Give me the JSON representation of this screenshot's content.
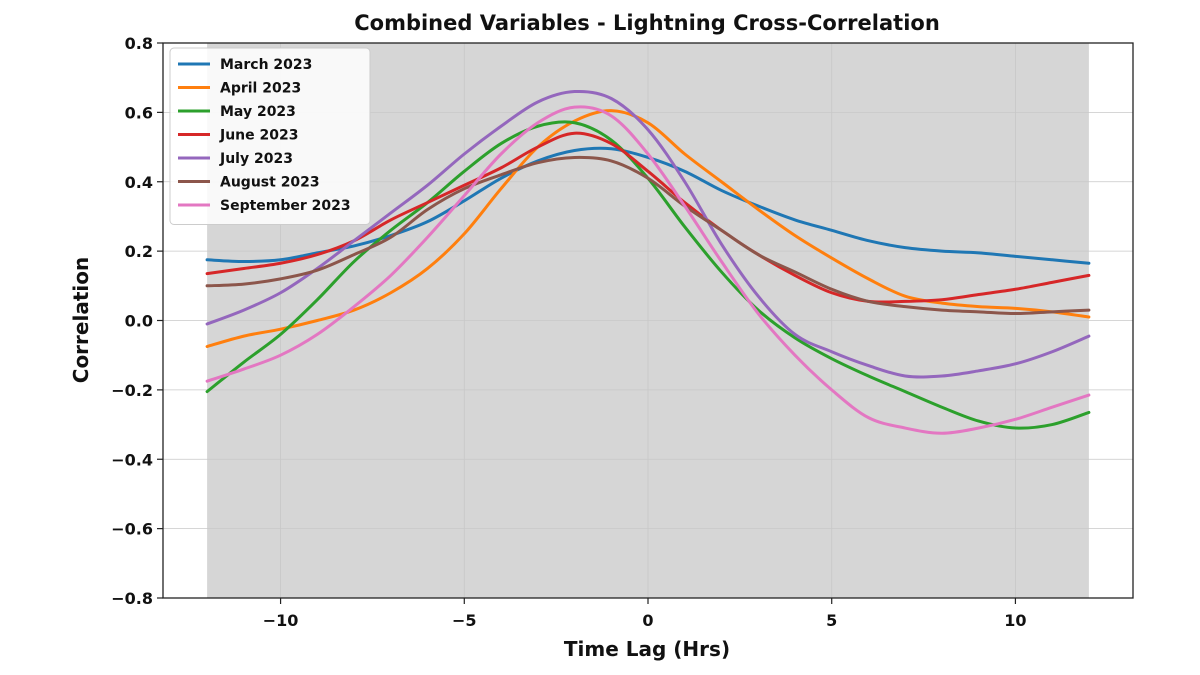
{
  "chart_data": {
    "type": "line",
    "title": "Combined Variables - Lightning Cross-Correlation",
    "xlabel": "Time Lag (Hrs)",
    "ylabel": "Correlation",
    "xlim": [
      -13.2,
      13.2
    ],
    "ylim": [
      -0.8,
      0.8
    ],
    "xticks": [
      -10,
      -5,
      0,
      5,
      10
    ],
    "xtick_labels": [
      "−10",
      "−5",
      "0",
      "5",
      "10"
    ],
    "yticks": [
      -0.8,
      -0.6,
      -0.4,
      -0.2,
      0.0,
      0.2,
      0.4,
      0.6,
      0.8
    ],
    "ytick_labels": [
      "−0.8",
      "−0.6",
      "−0.4",
      "−0.2",
      "0.0",
      "0.2",
      "0.4",
      "0.6",
      "0.8"
    ],
    "grid": true,
    "shaded_region": {
      "x_start": -12,
      "x_end": 12,
      "color": "#d6d6d6"
    },
    "legend_position": "top-left",
    "x": [
      -12,
      -11,
      -10,
      -9,
      -8,
      -7,
      -6,
      -5,
      -4,
      -3,
      -2,
      -1,
      0,
      1,
      2,
      3,
      4,
      5,
      6,
      7,
      8,
      9,
      10,
      11,
      12
    ],
    "series": [
      {
        "name": "March 2023",
        "color": "#1f77b4",
        "values": [
          0.175,
          0.17,
          0.175,
          0.195,
          0.215,
          0.245,
          0.285,
          0.345,
          0.41,
          0.46,
          0.49,
          0.495,
          0.47,
          0.43,
          0.375,
          0.33,
          0.29,
          0.26,
          0.23,
          0.21,
          0.2,
          0.195,
          0.185,
          0.175,
          0.165
        ]
      },
      {
        "name": "April 2023",
        "color": "#ff7f0e",
        "values": [
          -0.075,
          -0.045,
          -0.025,
          0.0,
          0.03,
          0.08,
          0.15,
          0.25,
          0.38,
          0.5,
          0.575,
          0.605,
          0.57,
          0.48,
          0.4,
          0.32,
          0.245,
          0.18,
          0.12,
          0.07,
          0.05,
          0.04,
          0.035,
          0.025,
          0.01
        ]
      },
      {
        "name": "May 2023",
        "color": "#2ca02c",
        "values": [
          -0.205,
          -0.12,
          -0.04,
          0.06,
          0.17,
          0.26,
          0.34,
          0.43,
          0.51,
          0.56,
          0.57,
          0.52,
          0.41,
          0.27,
          0.14,
          0.03,
          -0.05,
          -0.11,
          -0.16,
          -0.205,
          -0.25,
          -0.29,
          -0.31,
          -0.3,
          -0.265
        ]
      },
      {
        "name": "June 2023",
        "color": "#d62728",
        "values": [
          0.135,
          0.15,
          0.165,
          0.19,
          0.23,
          0.29,
          0.34,
          0.39,
          0.44,
          0.5,
          0.54,
          0.51,
          0.43,
          0.34,
          0.26,
          0.19,
          0.13,
          0.08,
          0.055,
          0.055,
          0.06,
          0.075,
          0.09,
          0.11,
          0.13
        ]
      },
      {
        "name": "July 2023",
        "color": "#9467bd",
        "values": [
          -0.01,
          0.03,
          0.08,
          0.15,
          0.23,
          0.31,
          0.39,
          0.48,
          0.56,
          0.63,
          0.66,
          0.64,
          0.55,
          0.4,
          0.22,
          0.07,
          -0.04,
          -0.09,
          -0.13,
          -0.16,
          -0.16,
          -0.145,
          -0.125,
          -0.09,
          -0.045
        ]
      },
      {
        "name": "August 2023",
        "color": "#8c564b",
        "values": [
          0.1,
          0.105,
          0.12,
          0.145,
          0.19,
          0.24,
          0.32,
          0.38,
          0.42,
          0.455,
          0.47,
          0.46,
          0.41,
          0.33,
          0.26,
          0.19,
          0.14,
          0.09,
          0.055,
          0.04,
          0.03,
          0.025,
          0.02,
          0.025,
          0.03
        ]
      },
      {
        "name": "September 2023",
        "color": "#e377c2",
        "values": [
          -0.175,
          -0.14,
          -0.1,
          -0.04,
          0.04,
          0.13,
          0.24,
          0.36,
          0.48,
          0.57,
          0.615,
          0.59,
          0.48,
          0.33,
          0.17,
          0.02,
          -0.1,
          -0.2,
          -0.28,
          -0.31,
          -0.325,
          -0.31,
          -0.285,
          -0.25,
          -0.215
        ]
      }
    ]
  }
}
